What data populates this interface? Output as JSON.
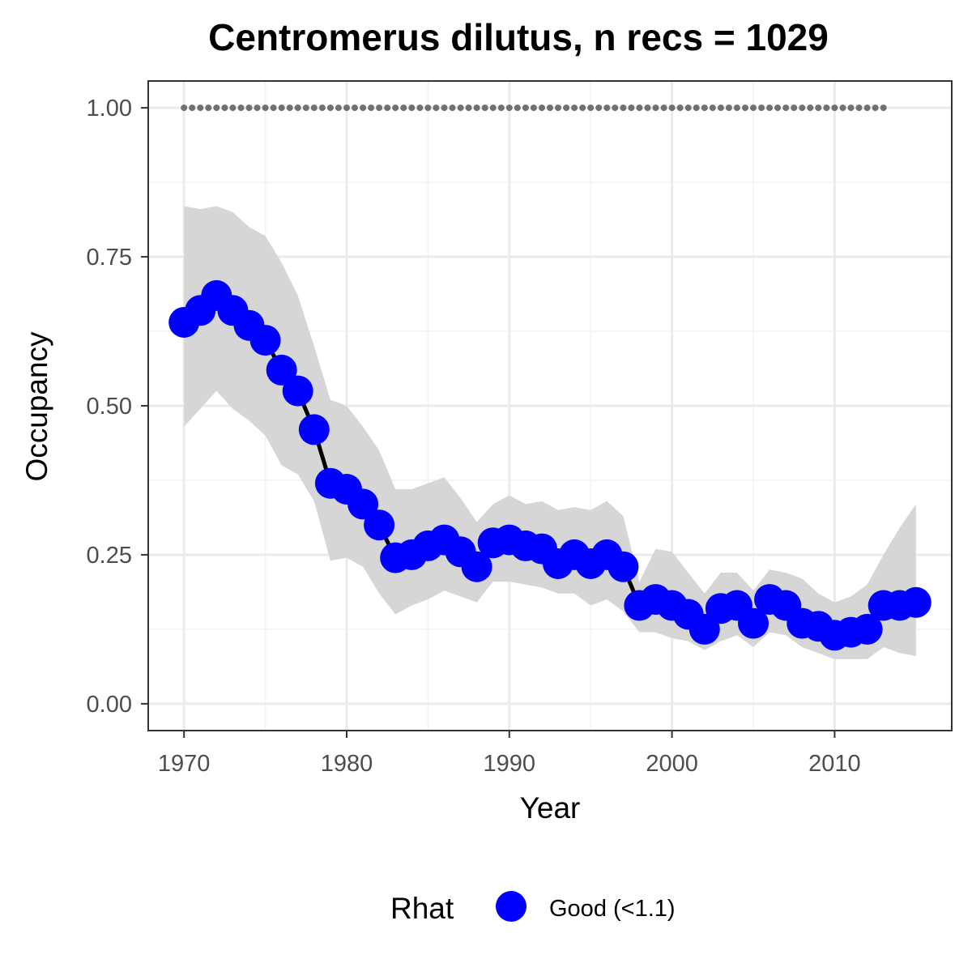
{
  "chart_data": {
    "type": "line",
    "title": "Centromerus dilutus, n recs = 1029",
    "xlabel": "Year",
    "ylabel": "Occupancy",
    "xlim": [
      1967.8,
      2017.2
    ],
    "ylim": [
      -0.045,
      1.045
    ],
    "x_ticks": [
      1970,
      1980,
      1990,
      2000,
      2010
    ],
    "x_tick_labels": [
      "1970",
      "1980",
      "1990",
      "2000",
      "2010"
    ],
    "y_ticks": [
      0,
      0.25,
      0.5,
      0.75,
      1.0
    ],
    "y_tick_labels": [
      "0.00",
      "0.25",
      "0.50",
      "0.75",
      "1.00"
    ],
    "grid": true,
    "legend": {
      "position": "bottom",
      "title": "Rhat",
      "entries": [
        {
          "label": "Good (<1.1)",
          "color": "#0000ff"
        }
      ]
    },
    "colors": {
      "points": "#0000ff",
      "line": "#000000",
      "ribbon": "#d6d6d6",
      "reference": "#707070"
    },
    "reference_line": {
      "y": 1.0,
      "x_start": 1970,
      "x_end": 2013,
      "style": "dotted"
    },
    "series": [
      {
        "name": "Good (<1.1)",
        "x": [
          1970,
          1971,
          1972,
          1973,
          1974,
          1975,
          1976,
          1977,
          1978,
          1979,
          1980,
          1981,
          1982,
          1983,
          1984,
          1985,
          1986,
          1987,
          1988,
          1989,
          1990,
          1991,
          1992,
          1993,
          1994,
          1995,
          1996,
          1997,
          1998,
          1999,
          2000,
          2001,
          2002,
          2003,
          2004,
          2005,
          2006,
          2007,
          2008,
          2009,
          2010,
          2011,
          2012,
          2013,
          2014,
          2015
        ],
        "y": [
          0.64,
          0.66,
          0.685,
          0.66,
          0.635,
          0.61,
          0.56,
          0.525,
          0.46,
          0.37,
          0.36,
          0.335,
          0.3,
          0.245,
          0.25,
          0.265,
          0.275,
          0.255,
          0.23,
          0.27,
          0.275,
          0.265,
          0.26,
          0.235,
          0.25,
          0.235,
          0.25,
          0.23,
          0.165,
          0.175,
          0.165,
          0.15,
          0.125,
          0.16,
          0.165,
          0.135,
          0.175,
          0.165,
          0.135,
          0.13,
          0.115,
          0.12,
          0.125,
          0.165,
          0.165,
          0.17
        ],
        "lower": [
          0.465,
          0.495,
          0.525,
          0.495,
          0.475,
          0.45,
          0.4,
          0.385,
          0.34,
          0.24,
          0.245,
          0.23,
          0.185,
          0.15,
          0.165,
          0.175,
          0.19,
          0.18,
          0.17,
          0.205,
          0.205,
          0.2,
          0.195,
          0.185,
          0.185,
          0.165,
          0.175,
          0.155,
          0.12,
          0.12,
          0.11,
          0.105,
          0.09,
          0.105,
          0.115,
          0.095,
          0.12,
          0.115,
          0.095,
          0.085,
          0.075,
          0.075,
          0.075,
          0.095,
          0.085,
          0.08
        ],
        "upper": [
          0.835,
          0.83,
          0.835,
          0.825,
          0.8,
          0.785,
          0.74,
          0.685,
          0.6,
          0.51,
          0.5,
          0.465,
          0.425,
          0.36,
          0.36,
          0.37,
          0.38,
          0.345,
          0.305,
          0.335,
          0.35,
          0.335,
          0.34,
          0.325,
          0.33,
          0.325,
          0.34,
          0.315,
          0.205,
          0.26,
          0.255,
          0.22,
          0.185,
          0.22,
          0.22,
          0.19,
          0.225,
          0.22,
          0.21,
          0.185,
          0.17,
          0.18,
          0.2,
          0.25,
          0.295,
          0.335
        ]
      }
    ]
  }
}
